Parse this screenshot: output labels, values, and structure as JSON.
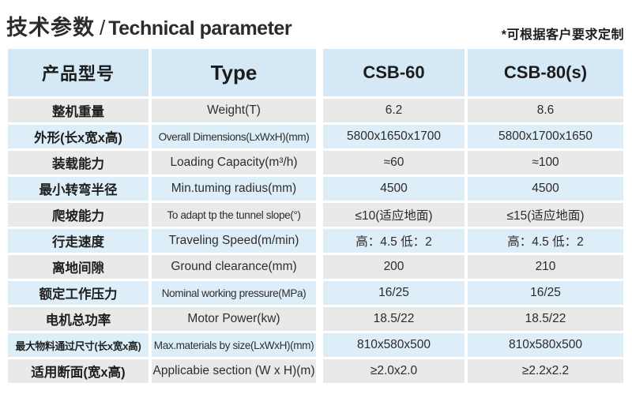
{
  "page": {
    "title_zh": "技术参数",
    "title_separator": "/",
    "title_en": "Technical parameter",
    "note": "*可根据客户要求定制"
  },
  "colors": {
    "header_bg": "#d4e8f5",
    "row_blue": "#ddeef8",
    "row_gray": "#e9e9e9",
    "page_bg": "#ffffff",
    "text": "#222222"
  },
  "table": {
    "header": {
      "param_zh": "产品型号",
      "param_en": "Type",
      "model_1": "CSB-60",
      "model_2": "CSB-80(s)"
    },
    "rows": [
      {
        "zh": "整机重量",
        "en": "Weight(T)",
        "v1": "6.2",
        "v2": "8.6"
      },
      {
        "zh": "外形(长x宽x高)",
        "en": "Overall Dimensions(LxWxH)(mm)",
        "v1": "5800x1650x1700",
        "v2": "5800x1700x1650"
      },
      {
        "zh": "装载能力",
        "en": "Loading Capacity(m³/h)",
        "v1": "≈60",
        "v2": "≈100"
      },
      {
        "zh": "最小转弯半径",
        "en": "Min.tuming radius(mm)",
        "v1": "4500",
        "v2": "4500"
      },
      {
        "zh": "爬坡能力",
        "en": "To adapt tp the tunnel slope(°)",
        "v1": "≤10(适应地面)",
        "v2": "≤15(适应地面)"
      },
      {
        "zh": "行走速度",
        "en": "Traveling Speed(m/min)",
        "v1": "高：4.5 低：2",
        "v2": "高：4.5 低：2"
      },
      {
        "zh": "离地间隙",
        "en": "Ground clearance(mm)",
        "v1": "200",
        "v2": "210"
      },
      {
        "zh": "额定工作压力",
        "en": "Nominal working pressure(MPa)",
        "v1": "16/25",
        "v2": "16/25"
      },
      {
        "zh": "电机总功率",
        "en": "Motor Power(kw)",
        "v1": "18.5/22",
        "v2": "18.5/22"
      },
      {
        "zh": "最大物料通过尺寸(长x宽x高)",
        "en": "Max.materials by size(LxWxH)(mm)",
        "v1": "810x580x500",
        "v2": "810x580x500"
      },
      {
        "zh": "适用断面(宽x高)",
        "en": "Applicabie section (W x H)(m)",
        "v1": "≥2.0x2.0",
        "v2": "≥2.2x2.2"
      }
    ]
  }
}
